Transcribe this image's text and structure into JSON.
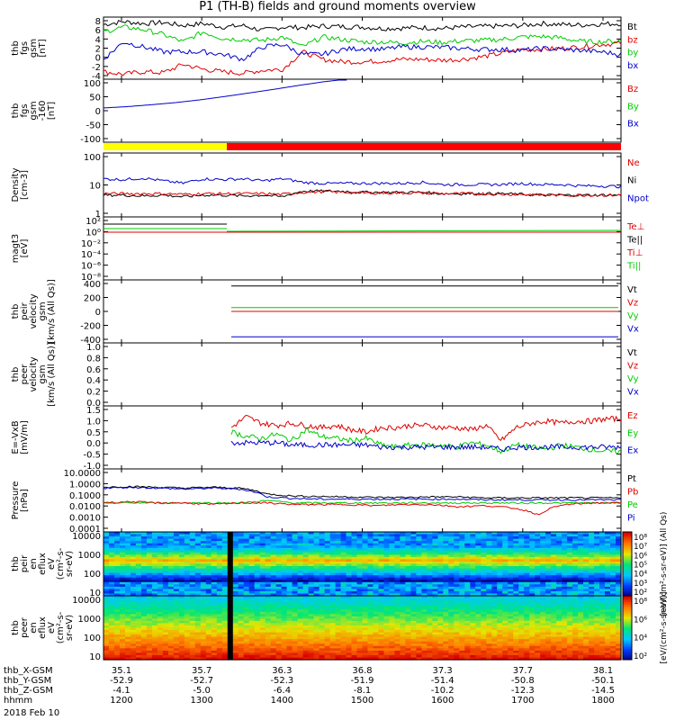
{
  "title": "P1 (TH-B) fields and ground moments overview",
  "colors": {
    "black": "#000000",
    "red": "#e00000",
    "green": "#00cc00",
    "blue": "#0000cc",
    "yellow": "#ffff00",
    "barred": "#ff0000"
  },
  "chart_data": [
    {
      "type": "line",
      "ylabel": [
        "thb",
        "fgs",
        "gsm",
        "[nT]"
      ],
      "yticks": [
        "8",
        "6",
        "4",
        "2",
        "0",
        "-2",
        "-4"
      ],
      "ylim": [
        -4,
        8.5
      ],
      "series": [
        {
          "name": "Bt",
          "color": "#000000",
          "values": [
            7,
            7.6,
            7.2,
            7.4,
            6.8,
            7.2,
            6.5,
            6.8,
            5.8,
            6.5,
            6.4,
            6.7,
            6.6,
            6.5,
            6.2,
            6.3,
            6.4,
            6.2,
            6.5,
            6.6,
            6.7,
            6.8,
            7.2,
            7.0,
            6.9,
            7.1,
            7.2
          ]
        },
        {
          "name": "bz",
          "color": "#e00000",
          "values": [
            -2.5,
            -3,
            -2.5,
            -2.7,
            -1,
            -2,
            -2.5,
            -2.8,
            -2.2,
            -2,
            1.5,
            0,
            -0.5,
            -0.5,
            -0.3,
            0,
            0,
            -0.2,
            0,
            0.5,
            1.2,
            2.0,
            2.0,
            2.2,
            2.5,
            3.0,
            3.2
          ]
        },
        {
          "name": "by",
          "color": "#00cc00",
          "values": [
            5.5,
            6.5,
            6.0,
            5.0,
            3.5,
            5.5,
            4.2,
            4.0,
            3.8,
            4.5,
            2.5,
            4.5,
            4.0,
            3.5,
            3.5,
            3.3,
            3.6,
            3.4,
            3.7,
            3.8,
            4.0,
            4.5,
            4.6,
            4.3,
            3.6,
            3.5,
            3.8
          ]
        },
        {
          "name": "bx",
          "color": "#0000cc",
          "values": [
            0,
            3.5,
            2.5,
            1.5,
            1.5,
            1.5,
            1,
            0,
            2.5,
            3,
            1,
            1,
            2,
            2.2,
            2,
            2.5,
            2.5,
            2.4,
            2.2,
            2.0,
            2.0,
            1.8,
            2.2,
            2.0,
            1.8,
            1.5,
            1.0
          ]
        }
      ]
    },
    {
      "type": "line",
      "ylabel": [
        "thb",
        "fgs",
        "gsm",
        "-160",
        "[nT]"
      ],
      "yticks": [
        "100",
        "50",
        "0",
        "-50",
        "-100"
      ],
      "ylim": [
        -125,
        105
      ],
      "legend": [
        {
          "name": "Bz",
          "color": "#e00000"
        },
        {
          "name": "By",
          "color": "#00cc00"
        },
        {
          "name": "Bx",
          "color": "#0000cc"
        }
      ],
      "series": [
        {
          "name": "Bx",
          "color": "#0000cc",
          "values": [
            0,
            5,
            12,
            20,
            30,
            42,
            55,
            68,
            82,
            95,
            105
          ]
        }
      ]
    },
    {
      "type": "line",
      "ylabel": [
        "Density",
        "[cm-3]"
      ],
      "yticks": [
        "100",
        "10",
        "1"
      ],
      "log": true,
      "ylim": [
        1,
        300
      ],
      "legend": [
        {
          "name": "Ne",
          "color": "#e00000"
        },
        {
          "name": "Ni",
          "color": "#000000"
        },
        {
          "name": "Npot",
          "color": "#0000cc"
        }
      ],
      "series": [
        {
          "name": "Npot",
          "color": "#0000cc",
          "values": [
            30,
            28,
            32,
            25,
            20,
            30,
            28,
            30,
            25,
            30,
            22,
            20,
            20,
            20,
            20,
            20,
            22,
            18,
            18,
            18,
            18,
            20,
            18,
            18,
            16,
            16,
            15
          ]
        },
        {
          "name": "Ni",
          "color": "#000000",
          "values": [
            7,
            7,
            6.5,
            7,
            6,
            7,
            7,
            6.5,
            7,
            6,
            10,
            10,
            10,
            9,
            9,
            9,
            9,
            8,
            8,
            8,
            8,
            7.5,
            7,
            7,
            7,
            7,
            7
          ]
        },
        {
          "name": "Ne",
          "color": "#e00000",
          "values": [
            8,
            8,
            8,
            8,
            7.5,
            8,
            8,
            8,
            8,
            7.5,
            9,
            9.5,
            9,
            8.5,
            8.5,
            8.5,
            8.5,
            8,
            8,
            8,
            7.5,
            7.5,
            7,
            7,
            7,
            7,
            7
          ]
        }
      ]
    },
    {
      "type": "line",
      "ylabel": [
        "magt3",
        "[eV]"
      ],
      "yticks": [
        "10²",
        "10⁰",
        "10⁻²",
        "10⁻⁴",
        "10⁻⁶",
        "10⁻⁸"
      ],
      "legend": [
        {
          "name": "Te⊥",
          "color": "#e00000"
        },
        {
          "name": "Te||",
          "color": "#000000"
        },
        {
          "name": "Ti⊥",
          "color": "#e00000"
        },
        {
          "name": "Ti||",
          "color": "#00cc00"
        }
      ],
      "series": []
    },
    {
      "type": "line",
      "ylabel": [
        "thb",
        "peir",
        "velocity",
        "gsm",
        "[km/s (All Qs)]"
      ],
      "yticks": [
        "400",
        "200",
        "0",
        "-200",
        "-400"
      ],
      "ylim": [
        -420,
        420
      ],
      "legend": [
        {
          "name": "Vt",
          "color": "#000000"
        },
        {
          "name": "Vz",
          "color": "#e00000"
        },
        {
          "name": "Vy",
          "color": "#00cc00"
        },
        {
          "name": "Vx",
          "color": "#0000cc"
        }
      ],
      "series": [
        {
          "name": "Vt",
          "color": "#000000",
          "values": [
            340,
            340,
            340,
            340,
            340,
            340,
            340,
            340,
            340,
            340
          ]
        },
        {
          "name": "Vz",
          "color": "#e00000",
          "values": [
            0,
            0,
            0,
            0,
            0,
            0,
            0,
            0,
            0,
            0
          ]
        },
        {
          "name": "Vy",
          "color": "#00cc00",
          "values": [
            50,
            50,
            50,
            50,
            50,
            50,
            50,
            50,
            50,
            50
          ]
        },
        {
          "name": "Vx",
          "color": "#0000cc",
          "values": [
            -340,
            -340,
            -340,
            -340,
            -340,
            -340,
            -340,
            -340,
            -340,
            -340
          ]
        }
      ]
    },
    {
      "type": "line",
      "ylabel": [
        "thb",
        "peer",
        "velocity",
        "gsm",
        "[km/s (All Qs)]"
      ],
      "yticks": [
        "1.0",
        "0.8",
        "0.6",
        "0.4",
        "0.2",
        "0.0"
      ],
      "ylim": [
        0,
        1
      ],
      "legend": [
        {
          "name": "Vt",
          "color": "#000000"
        },
        {
          "name": "Vz",
          "color": "#e00000"
        },
        {
          "name": "Vy",
          "color": "#00cc00"
        },
        {
          "name": "Vx",
          "color": "#0000cc"
        }
      ],
      "series": []
    },
    {
      "type": "line",
      "ylabel": [
        "E=-VxB",
        "[mV/m]"
      ],
      "yticks": [
        "1.5",
        "1.0",
        "0.5",
        "0.0",
        "-0.5",
        "-1.0"
      ],
      "ylim": [
        -1.1,
        1.8
      ],
      "legend": [
        {
          "name": "Ez",
          "color": "#e00000"
        },
        {
          "name": "Ey",
          "color": "#00cc00"
        },
        {
          "name": "Ex",
          "color": "#0000cc"
        }
      ],
      "series": [
        {
          "name": "Ez",
          "color": "#e00000",
          "values": [
            0.8,
            1.3,
            1.0,
            0.9,
            1.0,
            0.9,
            0.8,
            0.9,
            0.7,
            0.6,
            0.8,
            0.8,
            0.9,
            0.9,
            0.8,
            0.8,
            0.7,
            0.9,
            0.2,
            0.8,
            1.0,
            1.1,
            1.0,
            1.1,
            1.1,
            1.2,
            1.2
          ]
        },
        {
          "name": "Ey",
          "color": "#00cc00",
          "values": [
            0.6,
            0.4,
            0.3,
            0.5,
            0.2,
            0.7,
            0.4,
            0.3,
            0.2,
            0.3,
            0.0,
            -0.1,
            0.0,
            0.0,
            0.0,
            -0.1,
            0.1,
            0.0,
            -0.3,
            0.0,
            -0.1,
            -0.2,
            0.0,
            -0.1,
            -0.2,
            -0.3,
            -0.3
          ]
        },
        {
          "name": "Ex",
          "color": "#0000cc",
          "values": [
            0.1,
            0.1,
            0.1,
            0.1,
            0.0,
            0.0,
            0.0,
            0.0,
            0.0,
            0.0,
            -0.1,
            -0.1,
            -0.1,
            -0.1,
            -0.1,
            -0.1,
            -0.1,
            -0.1,
            -0.2,
            -0.1,
            -0.1,
            -0.1,
            -0.1,
            -0.1,
            -0.1,
            -0.1,
            -0.1
          ]
        }
      ]
    },
    {
      "type": "line",
      "ylabel": [
        "Pressure",
        "[nPa]"
      ],
      "yticks": [
        "10.0000",
        "1.0000",
        "0.1000",
        "0.0100",
        "0.0010",
        "0.0001"
      ],
      "log": true,
      "ylim": [
        0.0001,
        10
      ],
      "legend": [
        {
          "name": "Pt",
          "color": "#000000"
        },
        {
          "name": "Pb",
          "color": "#e00000"
        },
        {
          "name": "Pe",
          "color": "#00cc00"
        },
        {
          "name": "Pi",
          "color": "#0000cc"
        }
      ],
      "series": [
        {
          "name": "Pt",
          "color": "#000000",
          "values": [
            0.35,
            0.4,
            0.35,
            0.3,
            0.35,
            0.3,
            0.1,
            0.07,
            0.065,
            0.06,
            0.055,
            0.055,
            0.06,
            0.06,
            0.05,
            0.05,
            0.05,
            0.05,
            0.05,
            0.05
          ]
        },
        {
          "name": "Pi",
          "color": "#0000cc",
          "values": [
            0.3,
            0.35,
            0.3,
            0.25,
            0.3,
            0.25,
            0.06,
            0.045,
            0.04,
            0.04,
            0.04,
            0.04,
            0.04,
            0.04,
            0.035,
            0.035,
            0.035,
            0.035,
            0.035,
            0.035
          ]
        },
        {
          "name": "Pe",
          "color": "#00cc00",
          "values": [
            0.02,
            0.02,
            0.02,
            0.02,
            0.02,
            0.02,
            0.03,
            0.02,
            0.02,
            0.02,
            0.02,
            0.02,
            0.02,
            0.02,
            0.02,
            0.02,
            0.02,
            0.02,
            0.02,
            0.02
          ]
        },
        {
          "name": "Pb",
          "color": "#e00000",
          "values": [
            0.02,
            0.025,
            0.02,
            0.02,
            0.015,
            0.02,
            0.02,
            0.015,
            0.015,
            0.015,
            0.012,
            0.015,
            0.015,
            0.01,
            0.012,
            0.008,
            0.002,
            0.015,
            0.02,
            0.02
          ]
        }
      ]
    },
    {
      "type": "heatmap",
      "ylabel": [
        "thb",
        "peir",
        "en",
        "eflux",
        "eV",
        "(cm²-s-",
        "sr-eV)"
      ],
      "yticks": [
        "10000",
        "1000",
        "100",
        "10"
      ],
      "colorbar_label": "[eV/(cm²-s-sr-eV)] (All Qs)",
      "colorbar_ticks": [
        "10⁸",
        "10⁷",
        "10⁶",
        "10⁵",
        "10⁴",
        "10³",
        "10²"
      ]
    },
    {
      "type": "heatmap",
      "ylabel": [
        "thb",
        "peer",
        "en",
        "eflux",
        "eV",
        "(cm²-s-",
        "sr-eV)"
      ],
      "yticks": [
        "10000",
        "1000",
        "100",
        "10"
      ],
      "colorbar_label": "[eV/(cm²-s-sr-eV)]",
      "colorbar_ticks": [
        "10⁸",
        "10⁶",
        "10⁴",
        "10²"
      ]
    }
  ],
  "footer": {
    "rows": [
      {
        "label": "thb_X-GSM",
        "values": [
          "35.1",
          "35.7",
          "36.3",
          "36.8",
          "37.3",
          "37.7",
          "38.1"
        ]
      },
      {
        "label": "thb_Y-GSM",
        "values": [
          "-52.9",
          "-52.7",
          "-52.3",
          "-51.9",
          "-51.4",
          "-50.8",
          "-50.1"
        ]
      },
      {
        "label": "thb_Z-GSM",
        "values": [
          "-4.1",
          "-5.0",
          "-6.4",
          "-8.1",
          "-10.2",
          "-12.3",
          "-14.5"
        ]
      },
      {
        "label": "hhmm",
        "values": [
          "1200",
          "1300",
          "1400",
          "1500",
          "1600",
          "1700",
          "1800"
        ]
      }
    ],
    "date": "2018 Feb 10"
  }
}
